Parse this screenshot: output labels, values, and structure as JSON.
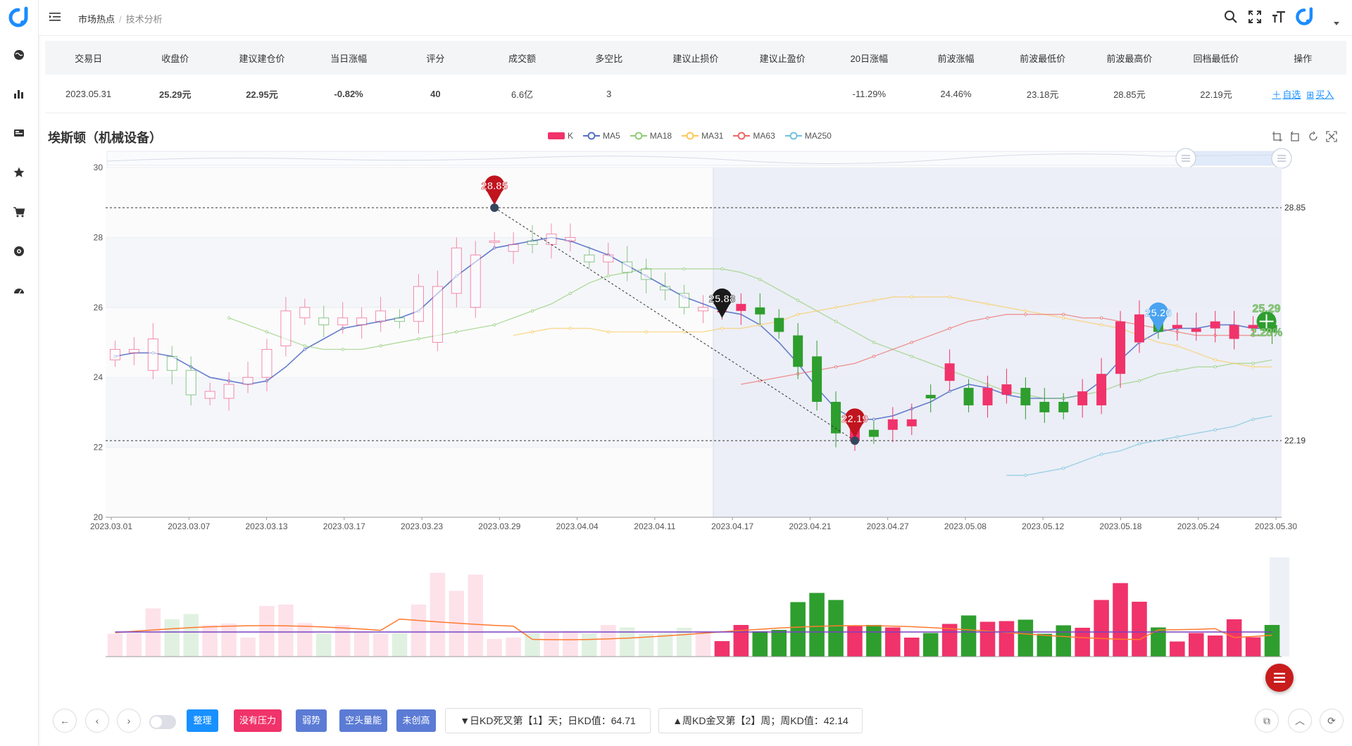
{
  "breadcrumb": {
    "root": "市场热点",
    "sep": "/",
    "current": "技术分析"
  },
  "table": {
    "headers": [
      "交易日",
      "收盘价",
      "建议建仓价",
      "当日涨幅",
      "评分",
      "成交额",
      "多空比",
      "建议止损价",
      "建议止盈价",
      "20日涨幅",
      "前波涨幅",
      "前波最低价",
      "前波最高价",
      "回档最低价",
      "操作"
    ],
    "row": {
      "date": "2023.05.31",
      "close": "25.29元",
      "build_price": "22.95元",
      "day_change": "-0.82%",
      "score": "40",
      "turnover": "6.6亿",
      "long_short": "3",
      "stop_loss": "",
      "take_profit": "",
      "change_20d": "-11.29%",
      "prev_wave_change": "24.46%",
      "prev_wave_low": "23.18元",
      "prev_wave_high": "28.85元",
      "pullback_low": "22.19元",
      "op_watch": "自选",
      "op_buy": "买入"
    }
  },
  "chart": {
    "title": "埃斯顿（机械设备）",
    "legend": [
      {
        "name": "K",
        "color": "#f0336a"
      },
      {
        "name": "MA5",
        "color": "#5470c6"
      },
      {
        "name": "MA18",
        "color": "#91cc75"
      },
      {
        "name": "MA31",
        "color": "#fac858"
      },
      {
        "name": "MA63",
        "color": "#ee6666"
      },
      {
        "name": "MA250",
        "color": "#73c0de"
      }
    ],
    "y_ticks": [
      "30",
      "28",
      "26",
      "24",
      "22",
      "20"
    ],
    "x_ticks": [
      "2023.03.01",
      "2023.03.07",
      "2023.03.13",
      "2023.03.17",
      "2023.03.23",
      "2023.03.29",
      "2023.04.04",
      "2023.04.11",
      "2023.04.17",
      "2023.04.21",
      "2023.04.27",
      "2023.05.08",
      "2023.05.12",
      "2023.05.18",
      "2023.05.24",
      "2023.05.30"
    ],
    "markers": {
      "high": "28.85",
      "mid": "25.88",
      "low": "22.19",
      "latest": "25.26",
      "close_tag": "25.29",
      "pct_tag": "2.28%"
    },
    "ref_lines": {
      "high": "28.85",
      "low": "22.19"
    }
  },
  "chart_data": {
    "type": "candlestick",
    "title": "埃斯顿（机械设备）",
    "ylim": [
      20,
      30
    ],
    "x": [
      "03.01",
      "03.02",
      "03.03",
      "03.06",
      "03.07",
      "03.08",
      "03.09",
      "03.10",
      "03.13",
      "03.14",
      "03.15",
      "03.16",
      "03.17",
      "03.20",
      "03.21",
      "03.22",
      "03.23",
      "03.24",
      "03.27",
      "03.28",
      "03.29",
      "03.30",
      "03.31",
      "04.03",
      "04.04",
      "04.06",
      "04.07",
      "04.10",
      "04.11",
      "04.12",
      "04.13",
      "04.14",
      "04.17",
      "04.18",
      "04.19",
      "04.20",
      "04.21",
      "04.24",
      "04.25",
      "04.26",
      "04.27",
      "04.28",
      "05.04",
      "05.05",
      "05.08",
      "05.09",
      "05.10",
      "05.11",
      "05.12",
      "05.15",
      "05.16",
      "05.17",
      "05.18",
      "05.19",
      "05.22",
      "05.23",
      "05.24",
      "05.25",
      "05.26",
      "05.29",
      "05.30",
      "05.31"
    ],
    "open": [
      24.5,
      24.7,
      24.2,
      24.6,
      24.2,
      23.4,
      23.4,
      23.8,
      24.0,
      24.9,
      25.7,
      25.7,
      25.5,
      25.5,
      25.6,
      25.7,
      25.6,
      25.0,
      26.4,
      26.0,
      27.9,
      27.6,
      27.9,
      27.8,
      27.9,
      27.5,
      27.3,
      27.3,
      27.1,
      26.6,
      26.4,
      25.9,
      25.9,
      25.9,
      26.0,
      25.7,
      25.2,
      24.6,
      23.3,
      22.2,
      22.5,
      22.5,
      22.6,
      23.5,
      23.9,
      23.7,
      23.2,
      23.5,
      23.7,
      23.3,
      23.3,
      23.2,
      23.2,
      24.1,
      25.0,
      25.6,
      25.4,
      25.3,
      25.4,
      25.1,
      25.4,
      25.5
    ],
    "close": [
      24.8,
      24.8,
      25.1,
      24.2,
      23.5,
      23.6,
      23.8,
      24.0,
      24.8,
      25.9,
      26.0,
      25.5,
      25.7,
      25.7,
      25.9,
      25.6,
      26.6,
      26.6,
      27.7,
      27.5,
      27.9,
      27.8,
      27.8,
      28.1,
      28.0,
      27.3,
      27.5,
      27.0,
      26.8,
      26.5,
      26.0,
      26.0,
      25.9,
      26.1,
      25.8,
      25.3,
      24.3,
      23.3,
      22.4,
      22.6,
      22.3,
      22.8,
      22.8,
      23.4,
      24.4,
      23.2,
      23.7,
      23.8,
      23.2,
      23.0,
      23.0,
      23.6,
      24.1,
      25.6,
      25.8,
      25.3,
      25.5,
      25.4,
      25.6,
      25.5,
      25.5,
      25.3
    ],
    "ma_series": [
      {
        "name": "MA5",
        "values": [
          24.6,
          24.7,
          24.7,
          24.6,
          24.3,
          24.0,
          23.9,
          23.8,
          23.9,
          24.3,
          24.8,
          25.1,
          25.4,
          25.5,
          25.6,
          25.7,
          25.9,
          26.4,
          26.9,
          27.3,
          27.7,
          27.8,
          27.9,
          28.0,
          27.9,
          27.7,
          27.5,
          27.2,
          26.9,
          26.6,
          26.3,
          26.1,
          25.9,
          25.8,
          25.5,
          25.0,
          24.4,
          23.7,
          23.1,
          22.8,
          22.8,
          22.9,
          23.1,
          23.3,
          23.6,
          23.8,
          23.7,
          23.5,
          23.4,
          23.4,
          23.4,
          23.5,
          23.9,
          24.5,
          25.0,
          25.3,
          25.4,
          25.4,
          25.5,
          25.5,
          25.4,
          25.4
        ]
      },
      {
        "name": "MA18",
        "values": [
          25.7,
          25.5,
          25.3,
          25.1,
          24.9,
          24.8,
          24.8,
          24.8,
          24.9,
          25.0,
          25.1,
          25.2,
          25.3,
          25.4,
          25.5,
          25.7,
          25.9,
          26.1,
          26.4,
          26.7,
          26.9,
          27.0,
          27.1,
          27.1,
          27.1,
          27.1,
          27.1,
          27.0,
          26.8,
          26.5,
          26.2,
          25.9,
          25.6,
          25.3,
          25.0,
          24.8,
          24.6,
          24.4,
          24.2,
          24.0,
          23.8,
          23.6,
          23.5,
          23.4,
          23.4,
          23.5,
          23.6,
          23.8,
          23.9,
          24.1,
          24.2,
          24.3,
          24.3,
          24.4,
          24.4,
          24.5
        ]
      },
      {
        "name": "MA31",
        "values": [
          25.2,
          25.3,
          25.4,
          25.4,
          25.4,
          25.3,
          25.3,
          25.3,
          25.3,
          25.3,
          25.3,
          25.4,
          25.4,
          25.5,
          25.6,
          25.8,
          25.9,
          26.0,
          26.1,
          26.2,
          26.3,
          26.3,
          26.3,
          26.3,
          26.2,
          26.1,
          26.0,
          25.9,
          25.8,
          25.7,
          25.6,
          25.5,
          25.4,
          25.2,
          25.0,
          24.9,
          24.7,
          24.5,
          24.4,
          24.3,
          24.3
        ]
      },
      {
        "name": "MA63",
        "values": [
          23.8,
          23.9,
          24.0,
          24.1,
          24.2,
          24.3,
          24.4,
          24.6,
          24.8,
          25.0,
          25.2,
          25.4,
          25.6,
          25.7,
          25.8,
          25.8,
          25.8,
          25.8,
          25.7,
          25.7,
          25.6,
          25.5,
          25.4,
          25.3,
          25.2,
          25.2,
          25.2,
          25.2,
          25.2
        ]
      },
      {
        "name": "MA250",
        "values": [
          21.2,
          21.2,
          21.3,
          21.4,
          21.6,
          21.8,
          21.9,
          22.1,
          22.2,
          22.3,
          22.4,
          22.5,
          22.6,
          22.8,
          22.9
        ]
      }
    ],
    "annotations": [
      {
        "label": "28.85",
        "type": "high"
      },
      {
        "label": "25.88",
        "type": "mid"
      },
      {
        "label": "22.19",
        "type": "low"
      }
    ]
  },
  "bottom": {
    "tags": [
      {
        "label": "整理",
        "color": "#1890ff"
      },
      {
        "label": "没有压力",
        "color": "#f0336a"
      },
      {
        "label": "弱势",
        "color": "#5b7bd5"
      },
      {
        "label": "空头量能",
        "color": "#5b7bd5"
      },
      {
        "label": "未创高",
        "color": "#5b7bd5"
      }
    ],
    "kd_day": "▼日KD死叉第【1】天；日KD值：64.71",
    "kd_week": "▲周KD金叉第【2】周；周KD值：42.14"
  }
}
